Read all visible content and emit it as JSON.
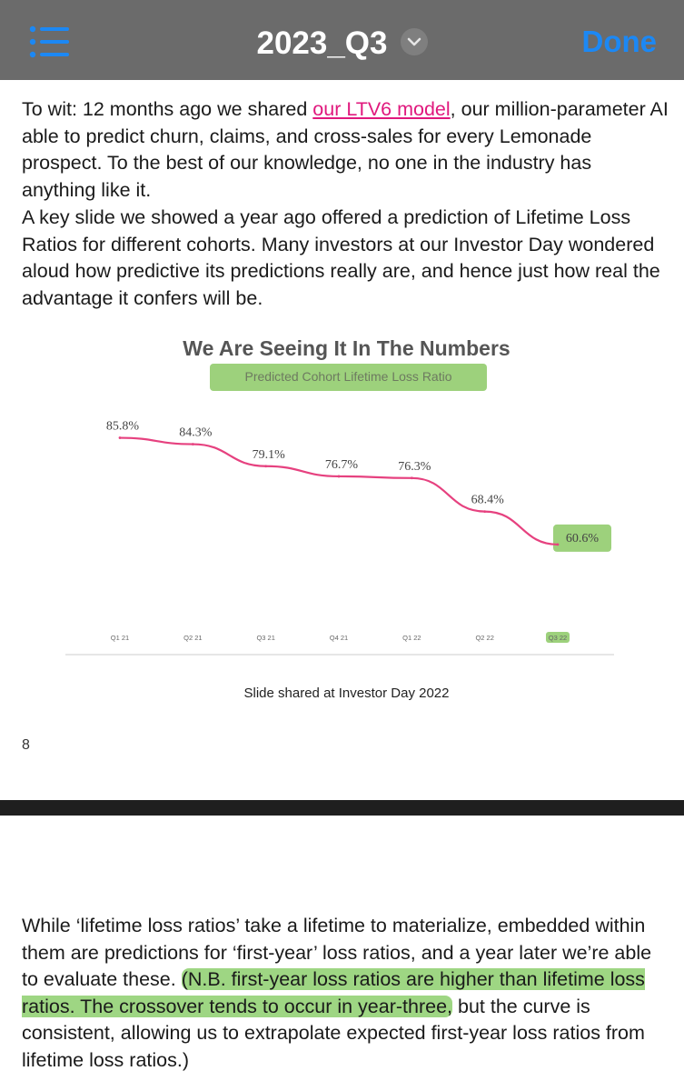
{
  "header": {
    "title": "2023_Q3",
    "done_label": "Done"
  },
  "intro": {
    "p1_before_link": "To wit: 12 months ago we shared ",
    "p1_link": "our LTV6 model",
    "p1_after_link": ", our million-parameter AI able to predict churn, claims, and cross-sales for every Lemonade prospect. To the best of our knowledge, no one in the industry has anything like it.",
    "p2": "A key slide we showed a year ago offered a prediction of Lifetime Loss Ratios for different cohorts. Many investors at our Investor Day wondered aloud how predictive its predictions really are, and hence just how real the advantage it confers will be."
  },
  "chart_data": {
    "type": "line",
    "title": "We Are Seeing It In The Numbers",
    "subtitle": "Predicted Cohort Lifetime Loss Ratio",
    "categories": [
      "Q1 21",
      "Q2 21",
      "Q3 21",
      "Q4 21",
      "Q1 22",
      "Q2 22",
      "Q3 22"
    ],
    "values": [
      85.8,
      84.3,
      79.1,
      76.7,
      76.3,
      68.4,
      60.6
    ],
    "labels": [
      "85.8%",
      "84.3%",
      "79.1%",
      "76.7%",
      "76.3%",
      "68.4%",
      "60.6%"
    ],
    "ylim": [
      55,
      90
    ],
    "xlabel": "",
    "ylabel": "",
    "line_color": "#e6417f",
    "highlight_color": "#9dd17c",
    "highlighted_index": 6
  },
  "caption": "Slide shared at Investor Day 2022",
  "page_number": "8",
  "body": {
    "p3_before_highlight": "While ‘lifetime loss ratios’ take a lifetime to materialize, embedded within them are predictions for ‘first-year’ loss ratios, and a year later we’re able to evaluate these. ",
    "p3_highlight": "(N.B. first-year loss ratios are higher than lifetime loss ratios. The crossover tends to occur in year-three,",
    "p3_after_highlight": " but the curve is consistent, allowing us to extrapolate expected first-year loss ratios from lifetime loss ratios.)"
  },
  "colors": {
    "toolbar": "#6b6b6b",
    "accent": "#1c88f4",
    "link": "#e0187d",
    "highlight": "#7dc85a"
  }
}
